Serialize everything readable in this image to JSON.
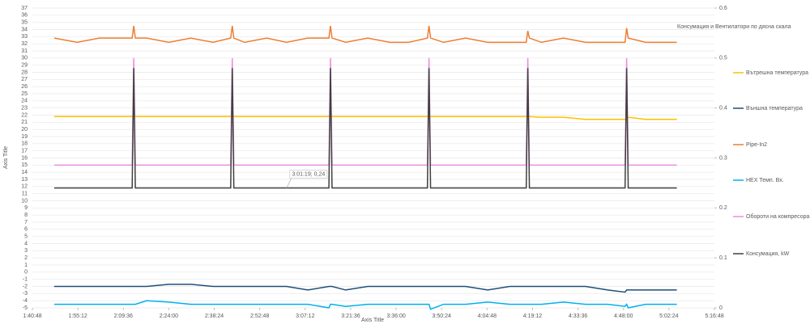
{
  "chart_data": {
    "type": "line",
    "annotation": "Консумация и Вентилатори по дясна скала",
    "x_label": "Axis Title",
    "y_label": "Axis Title",
    "x": [
      107.7,
      115,
      122,
      129,
      132.4,
      132.9,
      133.4,
      137,
      144,
      151,
      158,
      163.6,
      164.1,
      164.6,
      168,
      175,
      181.3,
      188,
      194.7,
      195.2,
      195.7,
      200,
      207,
      214,
      220,
      225.9,
      226.4,
      226.9,
      231,
      238,
      245,
      252,
      257.2,
      257.7,
      258.2,
      262,
      269,
      276,
      283,
      288.5,
      289,
      289.5,
      295,
      300,
      304.9
    ],
    "xlim": [
      100.8,
      316.8
    ],
    "xticks": [
      {
        "value": 100.8,
        "label": "1:40:48"
      },
      {
        "value": 115.2,
        "label": "1:55:12"
      },
      {
        "value": 129.6,
        "label": "2:09:36"
      },
      {
        "value": 144,
        "label": "2:24:00"
      },
      {
        "value": 158.4,
        "label": "2:38:24"
      },
      {
        "value": 172.8,
        "label": "2:52:48"
      },
      {
        "value": 187.2,
        "label": "3:07:12"
      },
      {
        "value": 201.6,
        "label": "3:21:36"
      },
      {
        "value": 216,
        "label": "3:36:00"
      },
      {
        "value": 230.4,
        "label": "3:50:24"
      },
      {
        "value": 244.8,
        "label": "4:04:48"
      },
      {
        "value": 259.2,
        "label": "4:19:12"
      },
      {
        "value": 273.6,
        "label": "4:33:36"
      },
      {
        "value": 288,
        "label": "4:48:00"
      },
      {
        "value": 302.4,
        "label": "5:02:24"
      },
      {
        "value": 316.8,
        "label": "5:16:48"
      }
    ],
    "ylim": [
      -5,
      37
    ],
    "yticks": [
      -5,
      -4,
      -3,
      -2,
      -1,
      0,
      1,
      2,
      3,
      4,
      5,
      6,
      7,
      8,
      9,
      10,
      11,
      12,
      13,
      14,
      15,
      16,
      17,
      18,
      19,
      20,
      21,
      22,
      23,
      24,
      25,
      26,
      27,
      28,
      29,
      30,
      31,
      32,
      33,
      34,
      35,
      36,
      37
    ],
    "y2lim": [
      0,
      0.6
    ],
    "y2ticks": [
      0,
      0.1,
      0.2,
      0.3,
      0.4,
      0.5,
      0.6
    ],
    "grid": true,
    "legend": "right",
    "series": [
      {
        "name": "Вътрешна температура",
        "color": "#ffc000",
        "values": [
          21.8,
          21.8,
          21.8,
          21.8,
          21.8,
          21.8,
          21.8,
          21.8,
          21.8,
          21.8,
          21.8,
          21.8,
          21.8,
          21.8,
          21.8,
          21.8,
          21.8,
          21.8,
          21.8,
          21.8,
          21.8,
          21.8,
          21.8,
          21.8,
          21.8,
          21.8,
          21.8,
          21.8,
          21.8,
          21.8,
          21.8,
          21.8,
          21.8,
          21.8,
          21.8,
          21.7,
          21.7,
          21.4,
          21.4,
          21.4,
          21.4,
          21.7,
          21.4,
          21.4,
          21.4
        ]
      },
      {
        "name": "Външна температура",
        "color": "#1f4e79",
        "values": [
          -2,
          -2,
          -2,
          -2,
          -2,
          -2,
          -2,
          -2,
          -1.7,
          -1.7,
          -2,
          -2,
          -2,
          -2,
          -2,
          -2,
          -2,
          -2.5,
          -2,
          -2,
          -2,
          -2.5,
          -2,
          -2,
          -2,
          -2,
          -2,
          -2,
          -2,
          -2,
          -2.5,
          -2,
          -2,
          -2,
          -2,
          -2,
          -2,
          -2,
          -2.5,
          -2.8,
          -2.5,
          -2.5,
          -2.5,
          -2.5,
          -2.5
        ]
      },
      {
        "name": "Pipe-In2",
        "color": "#ed7d31",
        "values": [
          32.8,
          32.2,
          32.8,
          32.8,
          32.8,
          34.5,
          32.8,
          32.8,
          32.2,
          32.8,
          32.2,
          32.8,
          34.5,
          32.8,
          32.2,
          32.8,
          32.2,
          32.8,
          32.8,
          34.5,
          32.8,
          32.2,
          32.8,
          32.2,
          32.2,
          32.8,
          34.5,
          32.8,
          32.2,
          32.8,
          32.2,
          32.2,
          32.2,
          33.8,
          32.8,
          32.2,
          32.8,
          32.2,
          32.2,
          32.2,
          34.2,
          32.8,
          32.2,
          32.2,
          32.2
        ]
      },
      {
        "name": "HEX Темп. Вх.",
        "color": "#00b0f0",
        "values": [
          -4.5,
          -4.5,
          -4.5,
          -4.5,
          -4.5,
          -4.5,
          -4.5,
          -4,
          -4.2,
          -4.5,
          -4.5,
          -4.5,
          -4.5,
          -4.5,
          -4.5,
          -4.5,
          -4.5,
          -4.5,
          -5,
          -4.5,
          -4.5,
          -4.8,
          -4.5,
          -4.5,
          -4.5,
          -4.5,
          -4.5,
          -5.2,
          -4.5,
          -4.5,
          -4.2,
          -4.5,
          -4.5,
          -4.5,
          -4.5,
          -4.5,
          -4.2,
          -4.5,
          -4.5,
          -4.8,
          -4.5,
          -5,
          -4.5,
          -4.5,
          -4.5
        ]
      },
      {
        "name": "Обороти на компресора, Hz",
        "color": "#e88fe0",
        "values": [
          15,
          15,
          15,
          15,
          15,
          30,
          15,
          15,
          15,
          15,
          15,
          15,
          30,
          15,
          15,
          15,
          15,
          15,
          15,
          30,
          15,
          15,
          15,
          15,
          15,
          15,
          30,
          15,
          15,
          15,
          15,
          15,
          15,
          30,
          15,
          15,
          15,
          15,
          15,
          15,
          30,
          15,
          15,
          15,
          15
        ]
      },
      {
        "name": "Консумация, kW",
        "color": "#404040",
        "axis": "y2",
        "values": [
          0.24,
          0.24,
          0.24,
          0.24,
          0.24,
          0.48,
          0.24,
          0.24,
          0.24,
          0.24,
          0.24,
          0.24,
          0.48,
          0.24,
          0.24,
          0.24,
          0.24,
          0.24,
          0.24,
          0.48,
          0.24,
          0.24,
          0.24,
          0.24,
          0.24,
          0.24,
          0.48,
          0.24,
          0.24,
          0.24,
          0.24,
          0.24,
          0.24,
          0.48,
          0.24,
          0.24,
          0.24,
          0.24,
          0.24,
          0.24,
          0.48,
          0.24,
          0.24,
          0.24,
          0.24
        ],
        "value_labels": [
          null,
          null,
          null,
          null,
          null,
          null,
          null,
          null,
          null,
          null,
          null,
          null,
          null,
          null,
          null,
          null,
          "3:01:19; 0,24",
          null,
          null,
          null,
          null,
          null,
          null,
          null,
          null,
          null,
          null,
          null,
          null,
          null,
          null,
          null,
          null,
          null,
          null,
          null,
          null,
          null,
          null,
          null,
          null,
          null,
          null,
          null,
          null
        ]
      }
    ]
  }
}
